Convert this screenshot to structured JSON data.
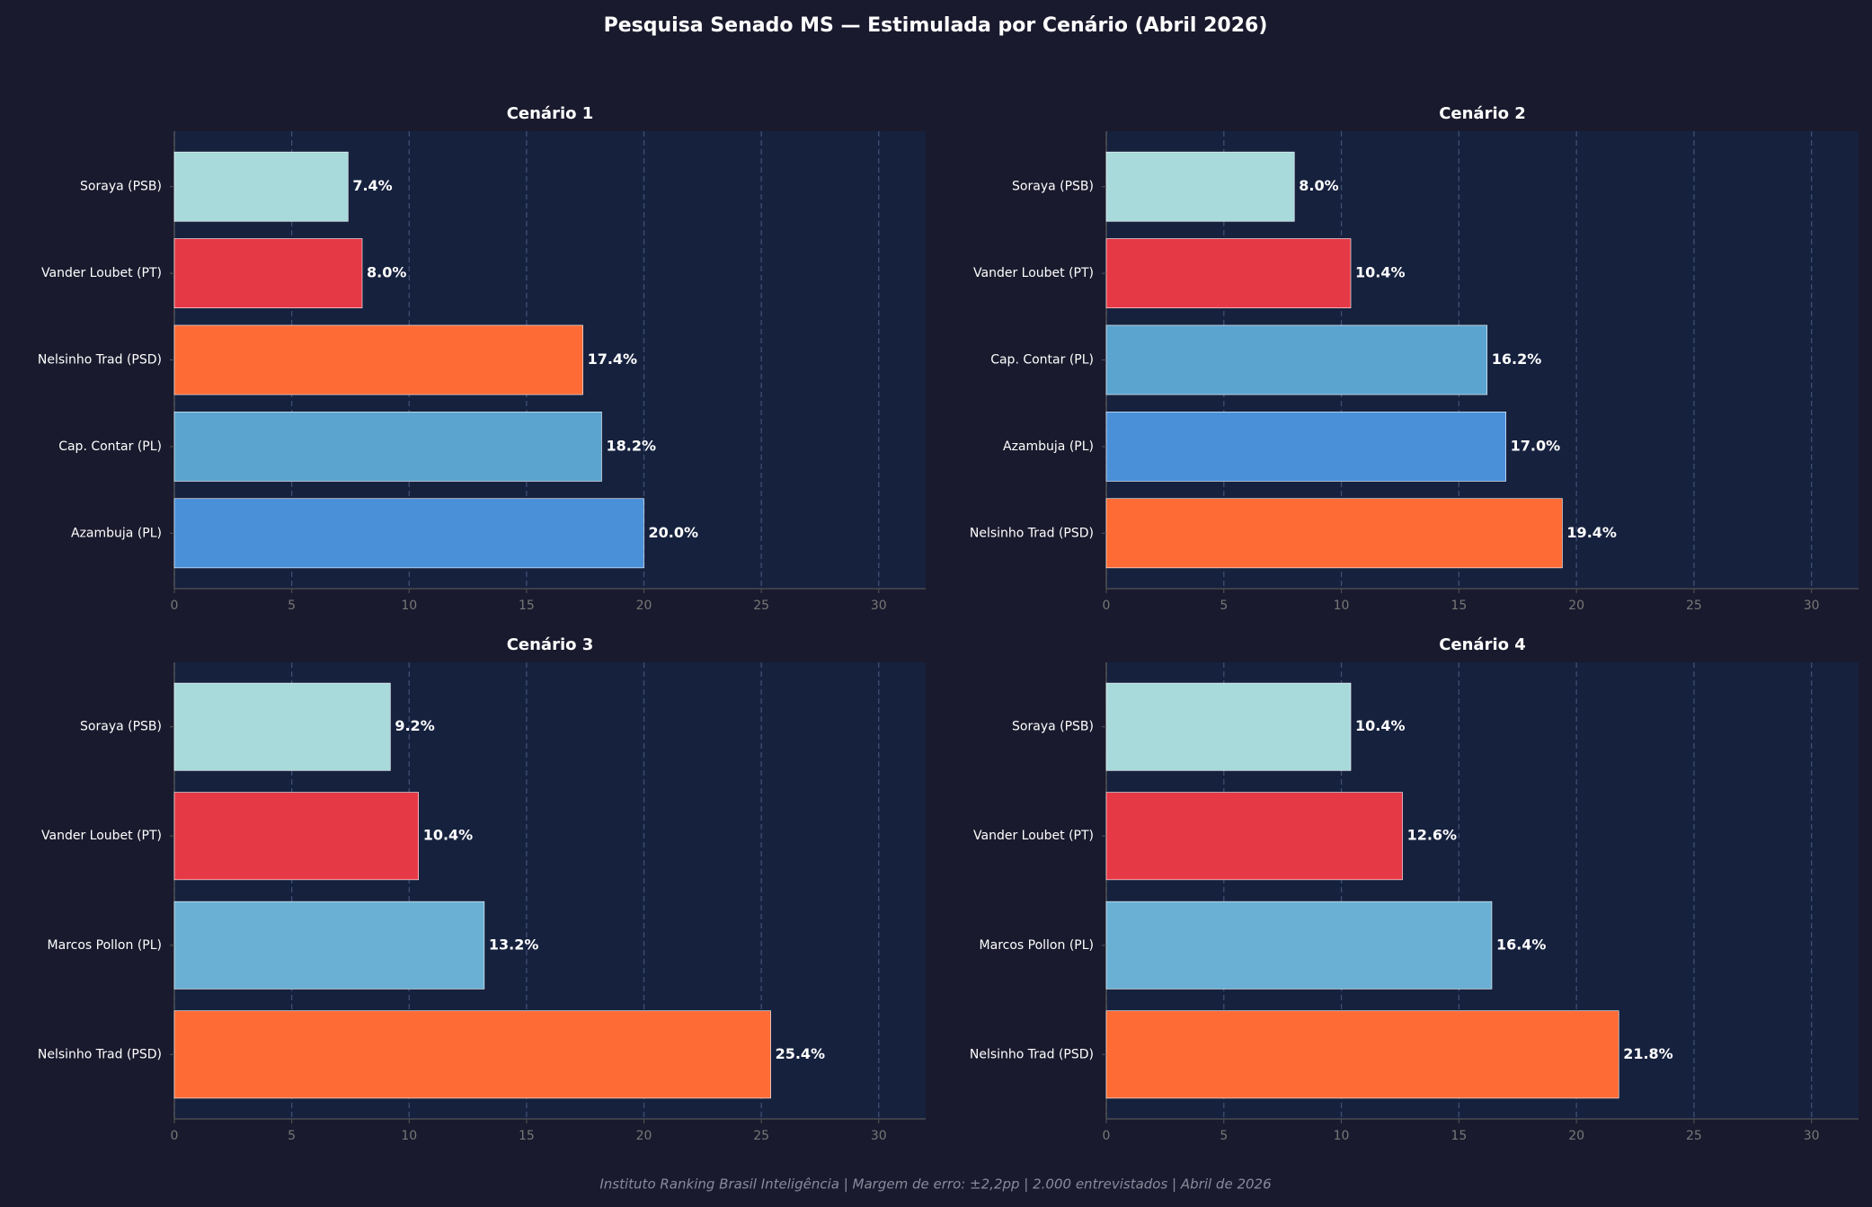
{
  "title": "Pesquisa Senado MS — Estimulada por Cenário (Abril 2026)",
  "footer": "Instituto Ranking Brasil Inteligência  |  Margem de erro: ±2,2pp  |  2.000 entrevistados  |  Abril de 2026",
  "chart_data": [
    {
      "type": "barh",
      "title": "Cenário 1",
      "categories": [
        "Soraya (PSB)",
        "Vander Loubet (PT)",
        "Nelsinho Trad (PSD)",
        "Cap. Contar (PL)",
        "Azambuja (PL)"
      ],
      "values": [
        7.4,
        8.0,
        17.4,
        18.2,
        20.0
      ],
      "value_labels": [
        "7.4%",
        "8.0%",
        "17.4%",
        "18.2%",
        "20.0%"
      ],
      "colors": [
        "#a8dadc",
        "#e63946",
        "#ff6b35",
        "#5ba4cf",
        "#4a90d9"
      ],
      "xlim": [
        0,
        32
      ],
      "xticks": [
        0,
        5,
        10,
        15,
        20,
        25,
        30
      ],
      "grid": true
    },
    {
      "type": "barh",
      "title": "Cenário 2",
      "categories": [
        "Soraya (PSB)",
        "Vander Loubet (PT)",
        "Cap. Contar (PL)",
        "Azambuja (PL)",
        "Nelsinho Trad (PSD)"
      ],
      "values": [
        8.0,
        10.4,
        16.2,
        17.0,
        19.4
      ],
      "value_labels": [
        "8.0%",
        "10.4%",
        "16.2%",
        "17.0%",
        "19.4%"
      ],
      "colors": [
        "#a8dadc",
        "#e63946",
        "#5ba4cf",
        "#4a90d9",
        "#ff6b35"
      ],
      "xlim": [
        0,
        32
      ],
      "xticks": [
        0,
        5,
        10,
        15,
        20,
        25,
        30
      ],
      "grid": true
    },
    {
      "type": "barh",
      "title": "Cenário 3",
      "categories": [
        "Soraya (PSB)",
        "Vander Loubet (PT)",
        "Marcos Pollon (PL)",
        "Nelsinho Trad (PSD)"
      ],
      "values": [
        9.2,
        10.4,
        13.2,
        25.4
      ],
      "value_labels": [
        "9.2%",
        "10.4%",
        "13.2%",
        "25.4%"
      ],
      "colors": [
        "#a8dadc",
        "#e63946",
        "#6ab0d4",
        "#ff6b35"
      ],
      "xlim": [
        0,
        32
      ],
      "xticks": [
        0,
        5,
        10,
        15,
        20,
        25,
        30
      ],
      "grid": true
    },
    {
      "type": "barh",
      "title": "Cenário 4",
      "categories": [
        "Soraya (PSB)",
        "Vander Loubet (PT)",
        "Marcos Pollon (PL)",
        "Nelsinho Trad (PSD)"
      ],
      "values": [
        10.4,
        12.6,
        16.4,
        21.8
      ],
      "value_labels": [
        "10.4%",
        "12.6%",
        "16.4%",
        "21.8%"
      ],
      "colors": [
        "#a8dadc",
        "#e63946",
        "#6ab0d4",
        "#ff6b35"
      ],
      "xlim": [
        0,
        32
      ],
      "xticks": [
        0,
        5,
        10,
        15,
        20,
        25,
        30
      ],
      "grid": true
    }
  ]
}
